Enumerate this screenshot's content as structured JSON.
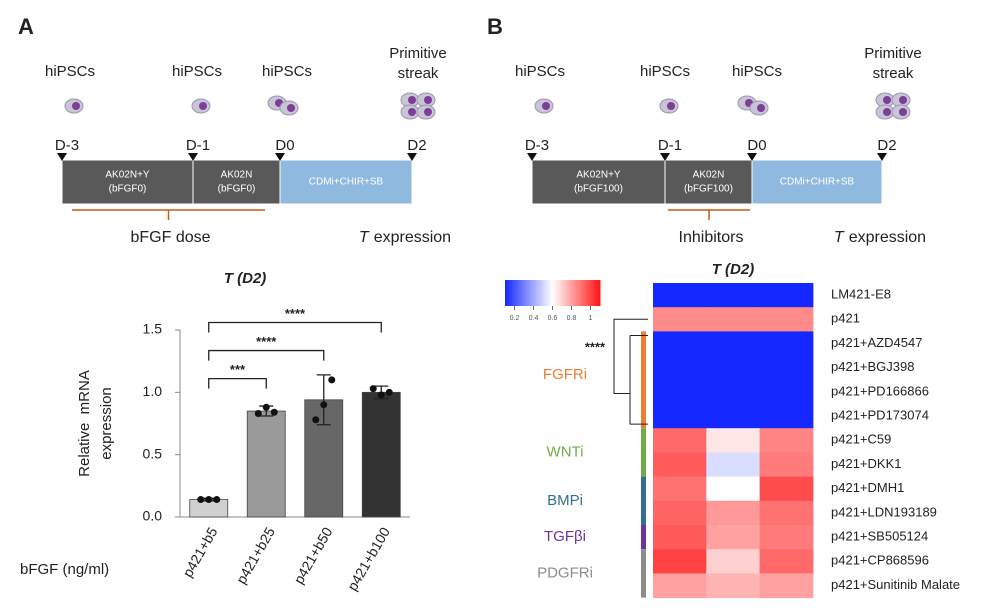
{
  "panels": [
    {
      "letter": "A",
      "cells": [
        "hiPSCs",
        "hiPSCs",
        "hiPSCs",
        [
          "Primitive",
          "streak"
        ]
      ],
      "days": [
        "D-3",
        "D-1",
        "D0",
        "D2"
      ],
      "stages": [
        {
          "name": "AK02N+Y",
          "sub": "(bFGF0)"
        },
        {
          "name": "AK02N",
          "sub": "(bFGF0)"
        },
        {
          "name": "CDMi+CHIR+SB"
        }
      ],
      "bracket_label": "bFGF dose",
      "readout": {
        "italic": "T",
        "text": "expression"
      }
    },
    {
      "letter": "B",
      "cells": [
        "hiPSCs",
        "hiPSCs",
        "hiPSCs",
        [
          "Primitive",
          "streak"
        ]
      ],
      "days": [
        "D-3",
        "D-1",
        "D0",
        "D2"
      ],
      "stages": [
        {
          "name": "AK02N+Y",
          "sub": "(bFGF100)"
        },
        {
          "name": "AK02N",
          "sub": "(bFGF100)"
        },
        {
          "name": "CDMi+CHIR+SB"
        }
      ],
      "bracket_label": "Inhibitors",
      "readout": {
        "italic": "T",
        "text": "expression"
      }
    }
  ],
  "chart_data": [
    {
      "type": "bar",
      "title": "T (D2)",
      "y_label": [
        "Relative  mRNA",
        "expression"
      ],
      "x_label": "bFGF (ng/ml)",
      "categories": [
        "p421+b5",
        "p421+b25",
        "p421+b50",
        "p421+b100"
      ],
      "values": [
        0.14,
        0.85,
        0.94,
        1.0
      ],
      "errors": [
        0.01,
        0.04,
        0.2,
        0.05
      ],
      "points": [
        [
          0.14,
          0.14,
          0.14
        ],
        [
          0.83,
          0.88,
          0.84
        ],
        [
          0.78,
          0.9,
          1.1
        ],
        [
          1.03,
          0.98,
          1.0
        ]
      ],
      "colors": [
        "#d0d0d0",
        "#9a9a9a",
        "#676767",
        "#333333"
      ],
      "ylim": [
        0,
        1.5
      ],
      "yticks": [
        {
          "value": 0,
          "label": "0.0"
        },
        0.5,
        {
          "value": 1,
          "label": "1.0"
        },
        1.5
      ],
      "significance": [
        {
          "label": "***",
          "from": 0,
          "to": 1
        },
        {
          "label": "****",
          "from": 0,
          "to": 2
        },
        {
          "label": "****",
          "from": 0,
          "to": 3
        }
      ]
    },
    {
      "type": "heatmap",
      "title": "T (D2)",
      "rows": [
        "LM421-E8",
        "p421",
        "p421+AZD4547",
        "p421+BGJ398",
        "p421+PD166866",
        "p421+PD173074",
        "p421+C59",
        "p421+DKK1",
        "p421+DMH1",
        "p421+LDN193189",
        "p421+SB505124",
        "p421+CP868596",
        "p421+Sunitinib Malate"
      ],
      "values": [
        [
          0.02,
          0.02,
          0.02
        ],
        [
          0.85,
          0.85,
          0.85
        ],
        [
          0.1,
          0.1,
          0.1
        ],
        [
          0.08,
          0.1,
          0.09
        ],
        [
          0.09,
          0.08,
          0.1
        ],
        [
          0.1,
          0.09,
          0.08
        ],
        [
          0.92,
          0.65,
          0.86
        ],
        [
          0.95,
          0.52,
          0.88
        ],
        [
          0.9,
          0.6,
          0.98
        ],
        [
          0.93,
          0.82,
          0.9
        ],
        [
          0.95,
          0.8,
          0.88
        ],
        [
          1.0,
          0.7,
          0.92
        ],
        [
          0.8,
          0.76,
          0.8
        ]
      ],
      "clim": [
        0.1,
        1.1
      ],
      "cticks": [
        0.2,
        0.4,
        0.6,
        0.8,
        1
      ],
      "groups": [
        {
          "name": "FGFRi",
          "color": "#ed7d31",
          "start": 2,
          "end": 5
        },
        {
          "name": "WNTi",
          "color": "#70ad47",
          "start": 6,
          "end": 7
        },
        {
          "name": "BMPi",
          "color": "#31708f",
          "start": 8,
          "end": 9
        },
        {
          "name": "TGFβi",
          "color": "#7030a0",
          "start": 10,
          "end": 10
        },
        {
          "name": "PDGFRi",
          "color": "#8c8c8c",
          "start": 11,
          "end": 12
        }
      ],
      "annotation": "****"
    }
  ]
}
